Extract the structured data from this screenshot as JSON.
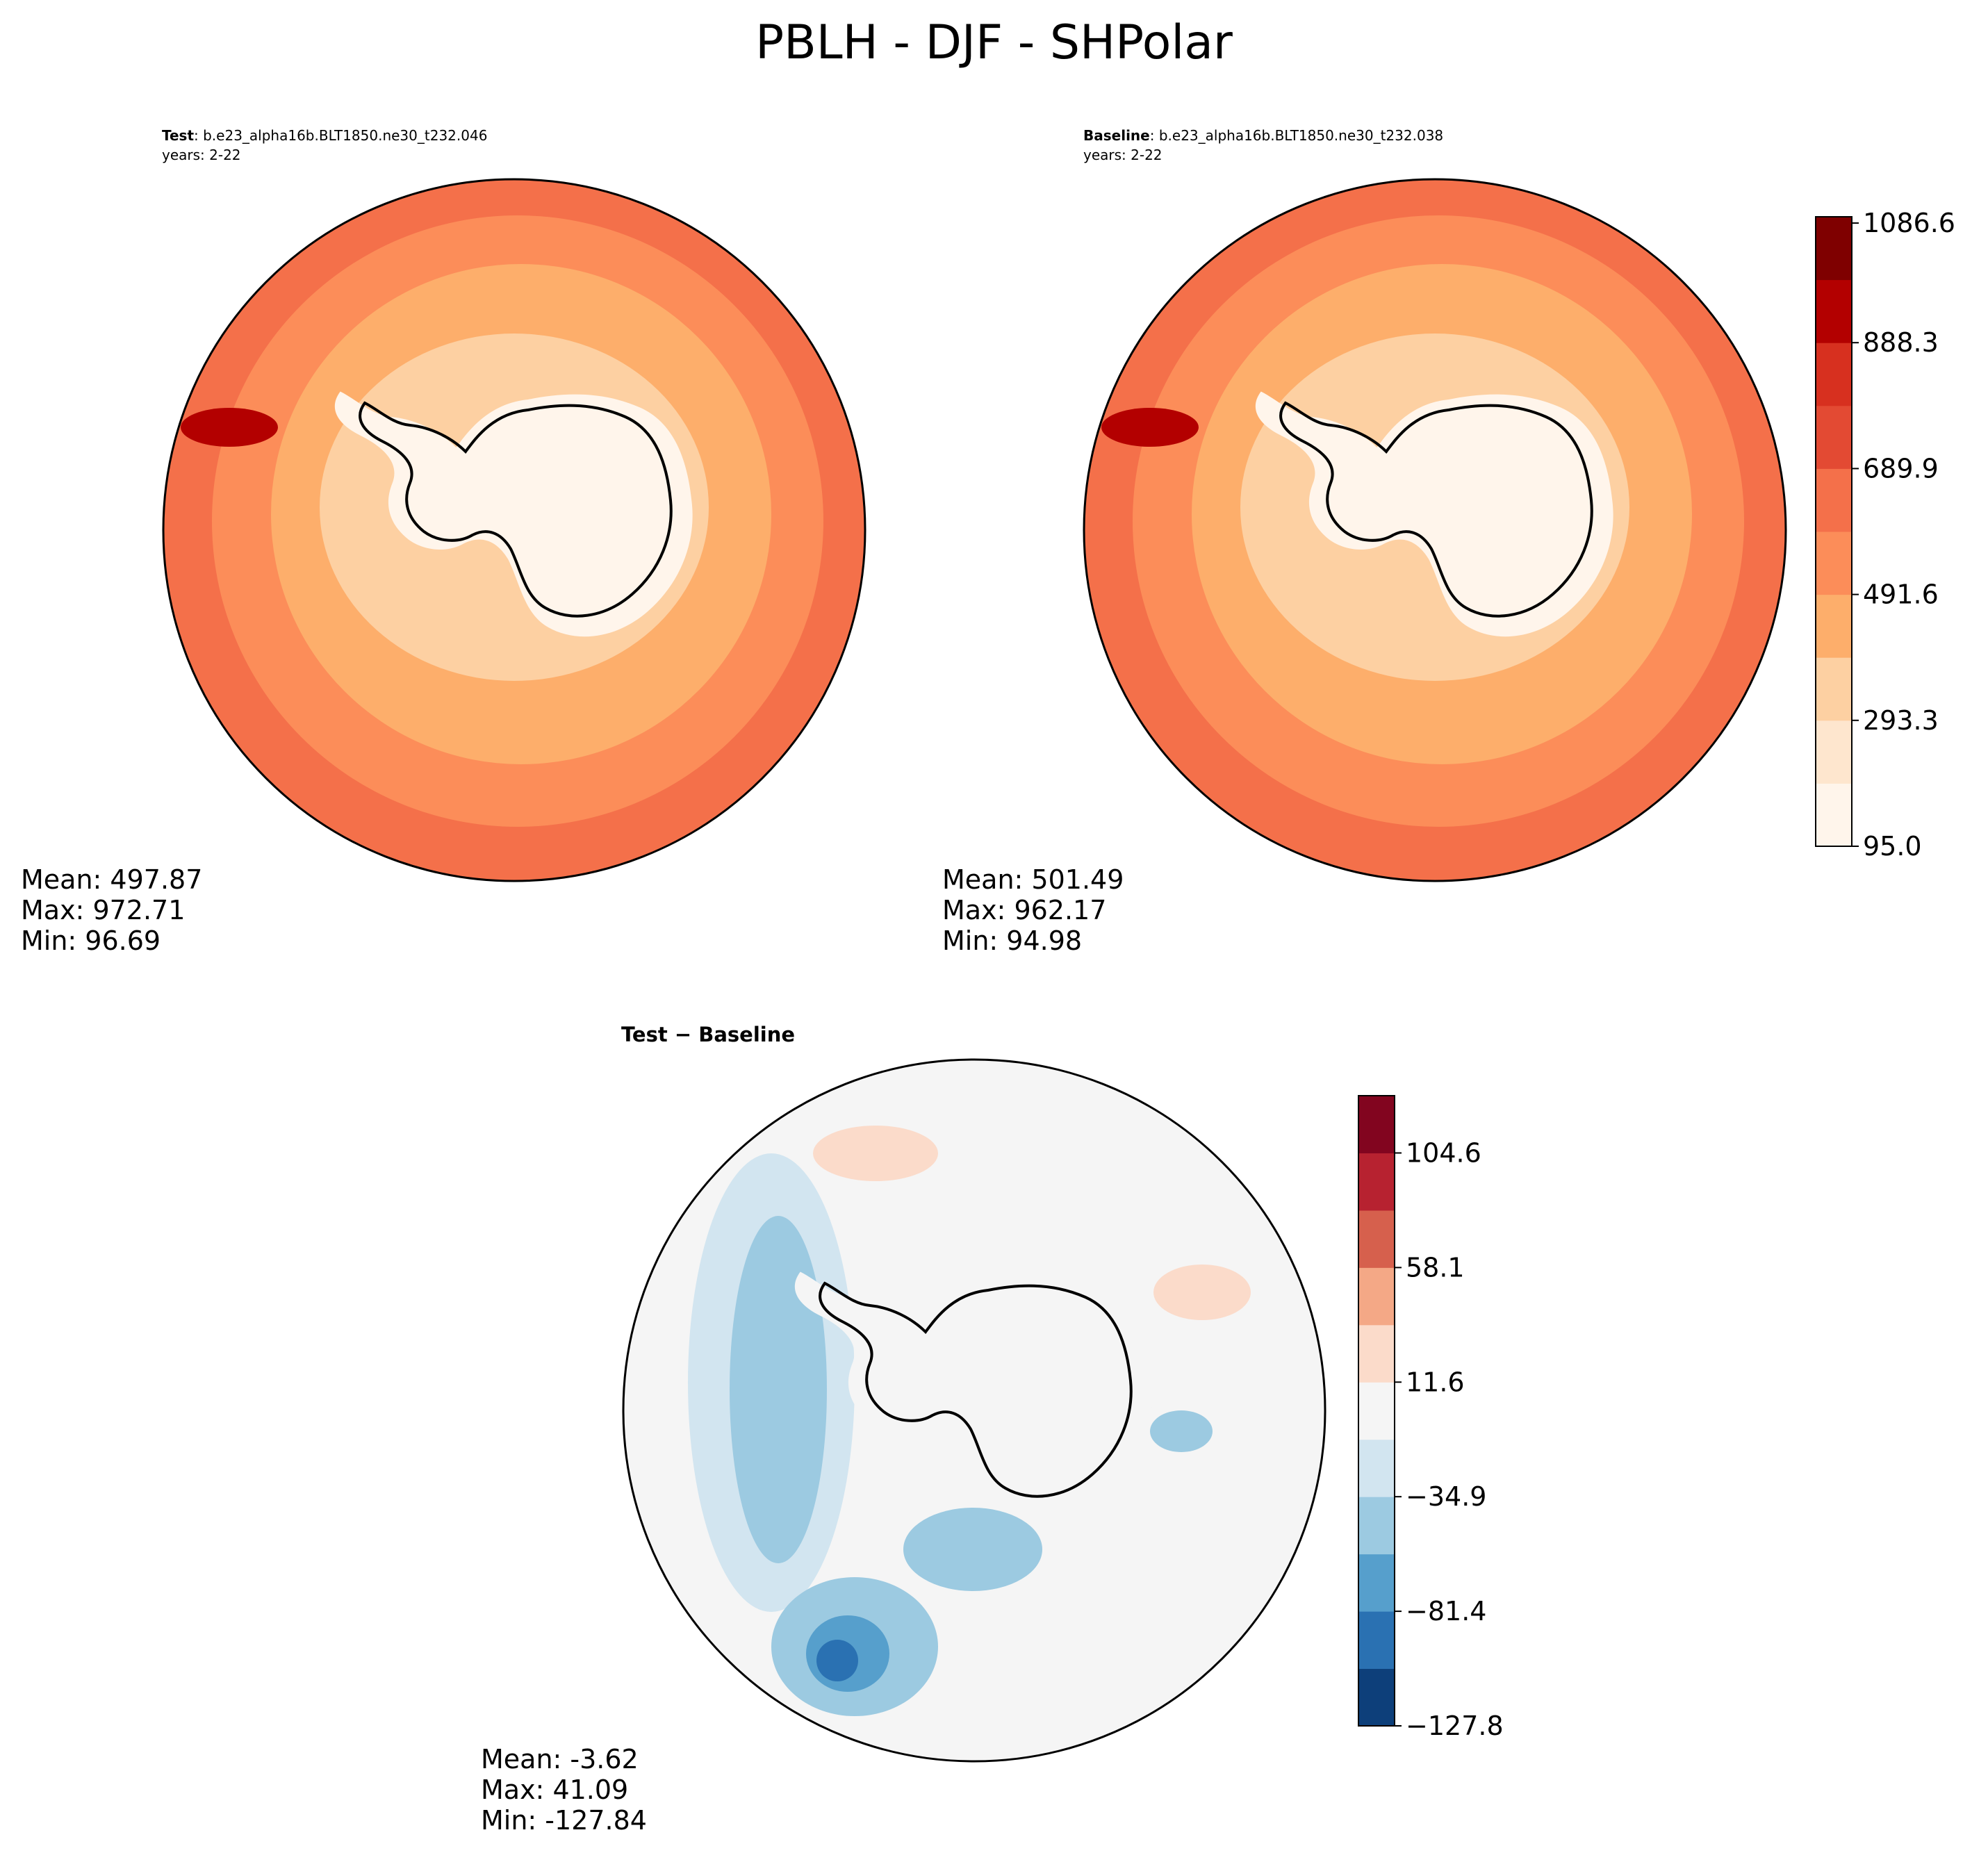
{
  "figure_title": "PBLH - DJF - SHPolar",
  "panels": {
    "test": {
      "label_bold": "Test",
      "label_rest": ": b.e23_alpha16b.BLT1850.ne30_t232.046",
      "years": "years: 2-22",
      "stats": {
        "mean": "Mean: 497.87",
        "max": "Max: 972.71",
        "min": "Min: 96.69"
      }
    },
    "baseline": {
      "label_bold": "Baseline",
      "label_rest": ": b.e23_alpha16b.BLT1850.ne30_t232.038",
      "years": "years: 2-22",
      "stats": {
        "mean": "Mean: 501.49",
        "max": "Max: 962.17",
        "min": "Min: 94.98"
      }
    },
    "diff": {
      "title": "Test − Baseline",
      "stats": {
        "mean": "Mean: -3.62",
        "max": "Max: 41.09",
        "min": "Min: -127.84"
      }
    }
  },
  "colorbars": {
    "main": {
      "ticks": [
        "95.0",
        "293.3",
        "491.6",
        "689.9",
        "888.3",
        "1086.6"
      ],
      "colors": [
        "#fff5eb",
        "#fee6ce",
        "#fdd0a2",
        "#fdae6b",
        "#fc8d59",
        "#f4704a",
        "#e34a33",
        "#d7301f",
        "#b30000",
        "#7f0000"
      ]
    },
    "diff": {
      "ticks": [
        "−127.8",
        "−81.4",
        "−34.9",
        "11.6",
        "58.1",
        "104.6"
      ],
      "colors": [
        "#0d3f7a",
        "#2a71b2",
        "#569fcc",
        "#9ccae1",
        "#d2e5f0",
        "#f5f5f5",
        "#fbdbca",
        "#f4a886",
        "#d6604d",
        "#b72230",
        "#82051f"
      ]
    }
  },
  "map_colors": {
    "ocean_outer": "#f4704a",
    "ocean_mid": "#fc8d59",
    "ring_orange": "#fdae6b",
    "ring_light": "#fdd0a2",
    "ring_pale": "#fee6ce",
    "interior": "#fff5eb",
    "hot_spot": "#b30000",
    "diff_neutral": "#f5f5f5"
  }
}
